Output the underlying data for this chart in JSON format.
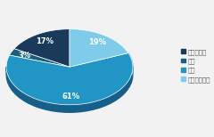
{
  "labels": [
    "高中及以下",
    "专科",
    "本科",
    "研究生及以上"
  ],
  "values": [
    17,
    3,
    61,
    19
  ],
  "colors": [
    "#1a3a5c",
    "#1a5f7a",
    "#2196c4",
    "#7ecbea"
  ],
  "shadow_colors": [
    "#0d2a45",
    "#0f3d52",
    "#155f8a",
    "#4fa8cc"
  ],
  "startangle": 90,
  "legend_labels": [
    "高中及以下",
    "专科",
    "本科",
    "研究生及以上"
  ],
  "legend_colors": [
    "#1a3a5c",
    "#1a5f7a",
    "#2196c4",
    "#7ecbea"
  ],
  "background_color": "#f2f2f2",
  "legend_fontsize": 5.0,
  "pct_fontsize": 6.0,
  "pct_distance": 0.78,
  "shadow_depth": 0.12
}
